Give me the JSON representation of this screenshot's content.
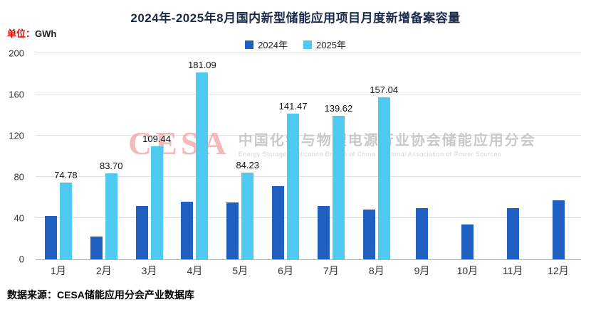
{
  "title": "2024年-2025年8月国内新型储能应用项目月度新增备案容量",
  "unit": {
    "prefix": "单位：",
    "value": "GWh"
  },
  "source": "数据来源：CESA储能应用分会产业数据库",
  "watermark": {
    "logo": "CESA",
    "cn": "中国化学与物理电源行业协会储能应用分会",
    "en": "Energy Storage Application Branch of China Industrial Association of Power Sources"
  },
  "chart_data": {
    "type": "bar",
    "title": "2024年-2025年8月国内新型储能应用项目月度新增备案容量",
    "unit": "GWh",
    "categories": [
      "1月",
      "2月",
      "3月",
      "4月",
      "5月",
      "6月",
      "7月",
      "8月",
      "9月",
      "10月",
      "11月",
      "12月"
    ],
    "series": [
      {
        "name": "2024年",
        "color": "#1f5fc0",
        "values": [
          42,
          22,
          52,
          56,
          55,
          71,
          52,
          48,
          50,
          34,
          50,
          57
        ]
      },
      {
        "name": "2025年",
        "color": "#4ec9f0",
        "values": [
          74.78,
          83.7,
          109.44,
          181.09,
          84.23,
          141.47,
          139.62,
          157.04,
          null,
          null,
          null,
          null
        ],
        "labels": [
          "74.78",
          "83.70",
          "109.44",
          "181.09",
          "84.23",
          "141.47",
          "139.62",
          "157.04"
        ]
      }
    ],
    "ylim": [
      0,
      200
    ],
    "yticks": [
      0,
      40,
      80,
      120,
      160,
      200
    ],
    "grid": true,
    "legend_position": "top"
  }
}
